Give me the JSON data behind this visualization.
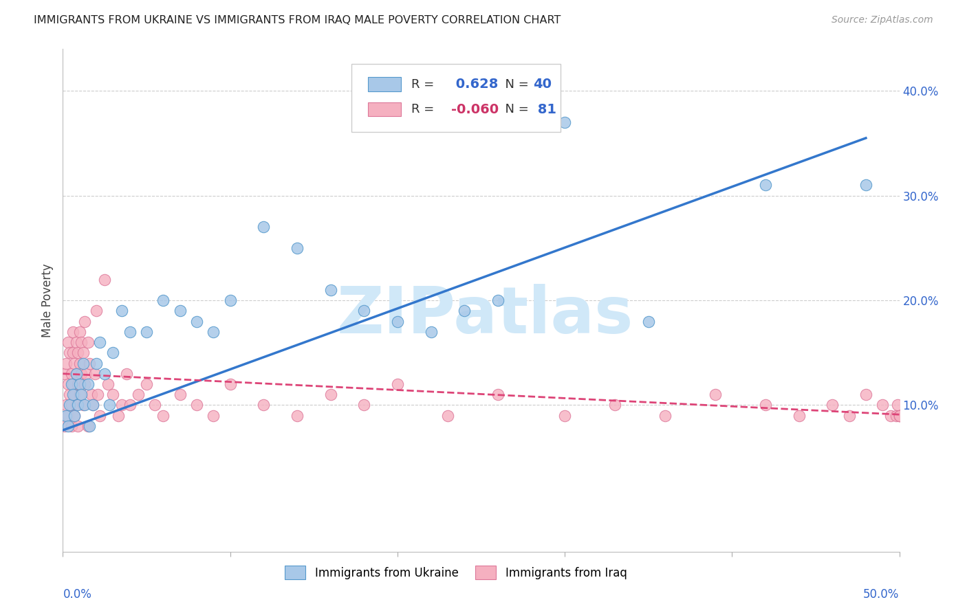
{
  "title": "IMMIGRANTS FROM UKRAINE VS IMMIGRANTS FROM IRAQ MALE POVERTY CORRELATION CHART",
  "source": "Source: ZipAtlas.com",
  "ylabel": "Male Poverty",
  "ytick_labels": [
    "10.0%",
    "20.0%",
    "30.0%",
    "40.0%"
  ],
  "ytick_values": [
    0.1,
    0.2,
    0.3,
    0.4
  ],
  "xlim": [
    0.0,
    0.5
  ],
  "ylim": [
    -0.04,
    0.44
  ],
  "ukraine_color": "#a8c8e8",
  "ukraine_edge": "#5599cc",
  "iraq_color": "#f5b0c0",
  "iraq_edge": "#dd7799",
  "trendline_ukraine": "#3377cc",
  "trendline_iraq": "#dd4477",
  "R_ukraine": 0.628,
  "N_ukraine": 40,
  "R_iraq": -0.06,
  "N_iraq": 81,
  "legend_label_ukraine": "Immigrants from Ukraine",
  "legend_label_iraq": "Immigrants from Iraq",
  "ukraine_x": [
    0.002,
    0.003,
    0.004,
    0.005,
    0.006,
    0.007,
    0.008,
    0.009,
    0.01,
    0.011,
    0.012,
    0.013,
    0.015,
    0.016,
    0.018,
    0.02,
    0.022,
    0.025,
    0.028,
    0.03,
    0.035,
    0.04,
    0.05,
    0.06,
    0.07,
    0.08,
    0.09,
    0.1,
    0.12,
    0.14,
    0.16,
    0.18,
    0.2,
    0.22,
    0.24,
    0.26,
    0.3,
    0.35,
    0.42,
    0.48
  ],
  "ukraine_y": [
    0.09,
    0.08,
    0.1,
    0.12,
    0.11,
    0.09,
    0.13,
    0.1,
    0.12,
    0.11,
    0.14,
    0.1,
    0.12,
    0.08,
    0.1,
    0.14,
    0.16,
    0.13,
    0.1,
    0.15,
    0.19,
    0.17,
    0.17,
    0.2,
    0.19,
    0.18,
    0.17,
    0.2,
    0.27,
    0.25,
    0.21,
    0.19,
    0.18,
    0.17,
    0.19,
    0.2,
    0.37,
    0.18,
    0.31,
    0.31
  ],
  "iraq_x": [
    0.001,
    0.001,
    0.002,
    0.002,
    0.003,
    0.003,
    0.003,
    0.004,
    0.004,
    0.005,
    0.005,
    0.005,
    0.006,
    0.006,
    0.006,
    0.007,
    0.007,
    0.007,
    0.008,
    0.008,
    0.008,
    0.009,
    0.009,
    0.009,
    0.01,
    0.01,
    0.01,
    0.011,
    0.011,
    0.012,
    0.012,
    0.013,
    0.013,
    0.014,
    0.015,
    0.015,
    0.016,
    0.017,
    0.018,
    0.019,
    0.02,
    0.021,
    0.022,
    0.025,
    0.027,
    0.03,
    0.033,
    0.035,
    0.038,
    0.04,
    0.045,
    0.05,
    0.055,
    0.06,
    0.07,
    0.08,
    0.09,
    0.1,
    0.12,
    0.14,
    0.16,
    0.18,
    0.2,
    0.23,
    0.26,
    0.3,
    0.33,
    0.36,
    0.39,
    0.42,
    0.44,
    0.46,
    0.47,
    0.48,
    0.49,
    0.495,
    0.498,
    0.499,
    0.5,
    0.5,
    0.5
  ],
  "iraq_y": [
    0.08,
    0.13,
    0.1,
    0.14,
    0.09,
    0.12,
    0.16,
    0.11,
    0.15,
    0.08,
    0.1,
    0.13,
    0.12,
    0.15,
    0.17,
    0.09,
    0.11,
    0.14,
    0.1,
    0.13,
    0.16,
    0.12,
    0.15,
    0.08,
    0.11,
    0.14,
    0.17,
    0.13,
    0.16,
    0.1,
    0.15,
    0.12,
    0.18,
    0.13,
    0.08,
    0.16,
    0.14,
    0.11,
    0.1,
    0.13,
    0.19,
    0.11,
    0.09,
    0.22,
    0.12,
    0.11,
    0.09,
    0.1,
    0.13,
    0.1,
    0.11,
    0.12,
    0.1,
    0.09,
    0.11,
    0.1,
    0.09,
    0.12,
    0.1,
    0.09,
    0.11,
    0.1,
    0.12,
    0.09,
    0.11,
    0.09,
    0.1,
    0.09,
    0.11,
    0.1,
    0.09,
    0.1,
    0.09,
    0.11,
    0.1,
    0.09,
    0.09,
    0.1,
    0.09,
    0.09,
    0.09
  ],
  "watermark_text": "ZIPatlas",
  "watermark_color": "#d0e8f8",
  "background_color": "#ffffff",
  "grid_color": "#cccccc",
  "grid_style": "--"
}
